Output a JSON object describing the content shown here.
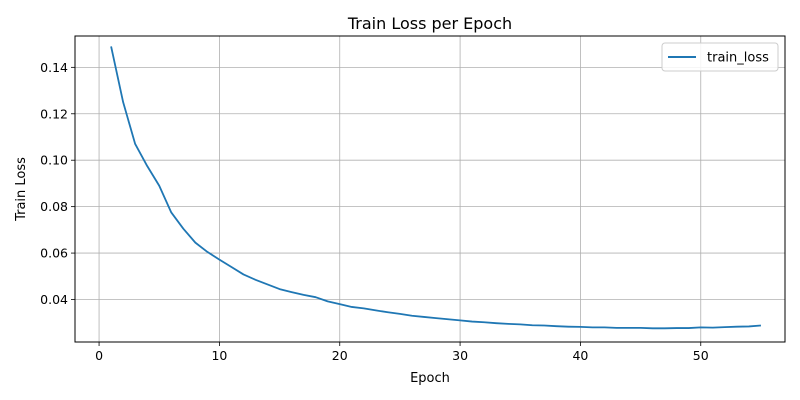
{
  "chart_data": {
    "type": "line",
    "title": "Train Loss per Epoch",
    "xlabel": "Epoch",
    "ylabel": "Train Loss",
    "xlim": [
      -2,
      57
    ],
    "ylim": [
      0.0217,
      0.1535
    ],
    "xticks": [
      0,
      10,
      20,
      30,
      40,
      50
    ],
    "yticks": [
      0.04,
      0.06,
      0.08,
      0.1,
      0.12,
      0.14
    ],
    "ytick_labels": [
      "0.04",
      "0.06",
      "0.08",
      "0.10",
      "0.12",
      "0.14"
    ],
    "grid": true,
    "legend": "top-right",
    "series": [
      {
        "name": "train_loss",
        "color": "#1f77b4",
        "x": [
          1,
          2,
          3,
          4,
          5,
          6,
          7,
          8,
          9,
          10,
          11,
          12,
          13,
          14,
          15,
          16,
          17,
          18,
          19,
          20,
          21,
          22,
          23,
          24,
          25,
          26,
          27,
          28,
          29,
          30,
          31,
          32,
          33,
          34,
          35,
          36,
          37,
          38,
          39,
          40,
          41,
          42,
          43,
          44,
          45,
          46,
          47,
          48,
          49,
          50,
          51,
          52,
          53,
          54,
          55
        ],
        "y": [
          0.149,
          0.125,
          0.107,
          0.0975,
          0.089,
          0.0775,
          0.0705,
          0.0645,
          0.0605,
          0.0572,
          0.054,
          0.0508,
          0.0485,
          0.0465,
          0.0445,
          0.0432,
          0.042,
          0.041,
          0.0392,
          0.038,
          0.0368,
          0.0362,
          0.0353,
          0.0345,
          0.0338,
          0.033,
          0.0325,
          0.032,
          0.0315,
          0.031,
          0.0305,
          0.0302,
          0.0298,
          0.0295,
          0.0293,
          0.0289,
          0.0288,
          0.0285,
          0.0283,
          0.0282,
          0.028,
          0.028,
          0.0278,
          0.0278,
          0.0278,
          0.0276,
          0.0276,
          0.0277,
          0.0277,
          0.028,
          0.0279,
          0.0281,
          0.0283,
          0.0284,
          0.0288
        ]
      }
    ]
  }
}
